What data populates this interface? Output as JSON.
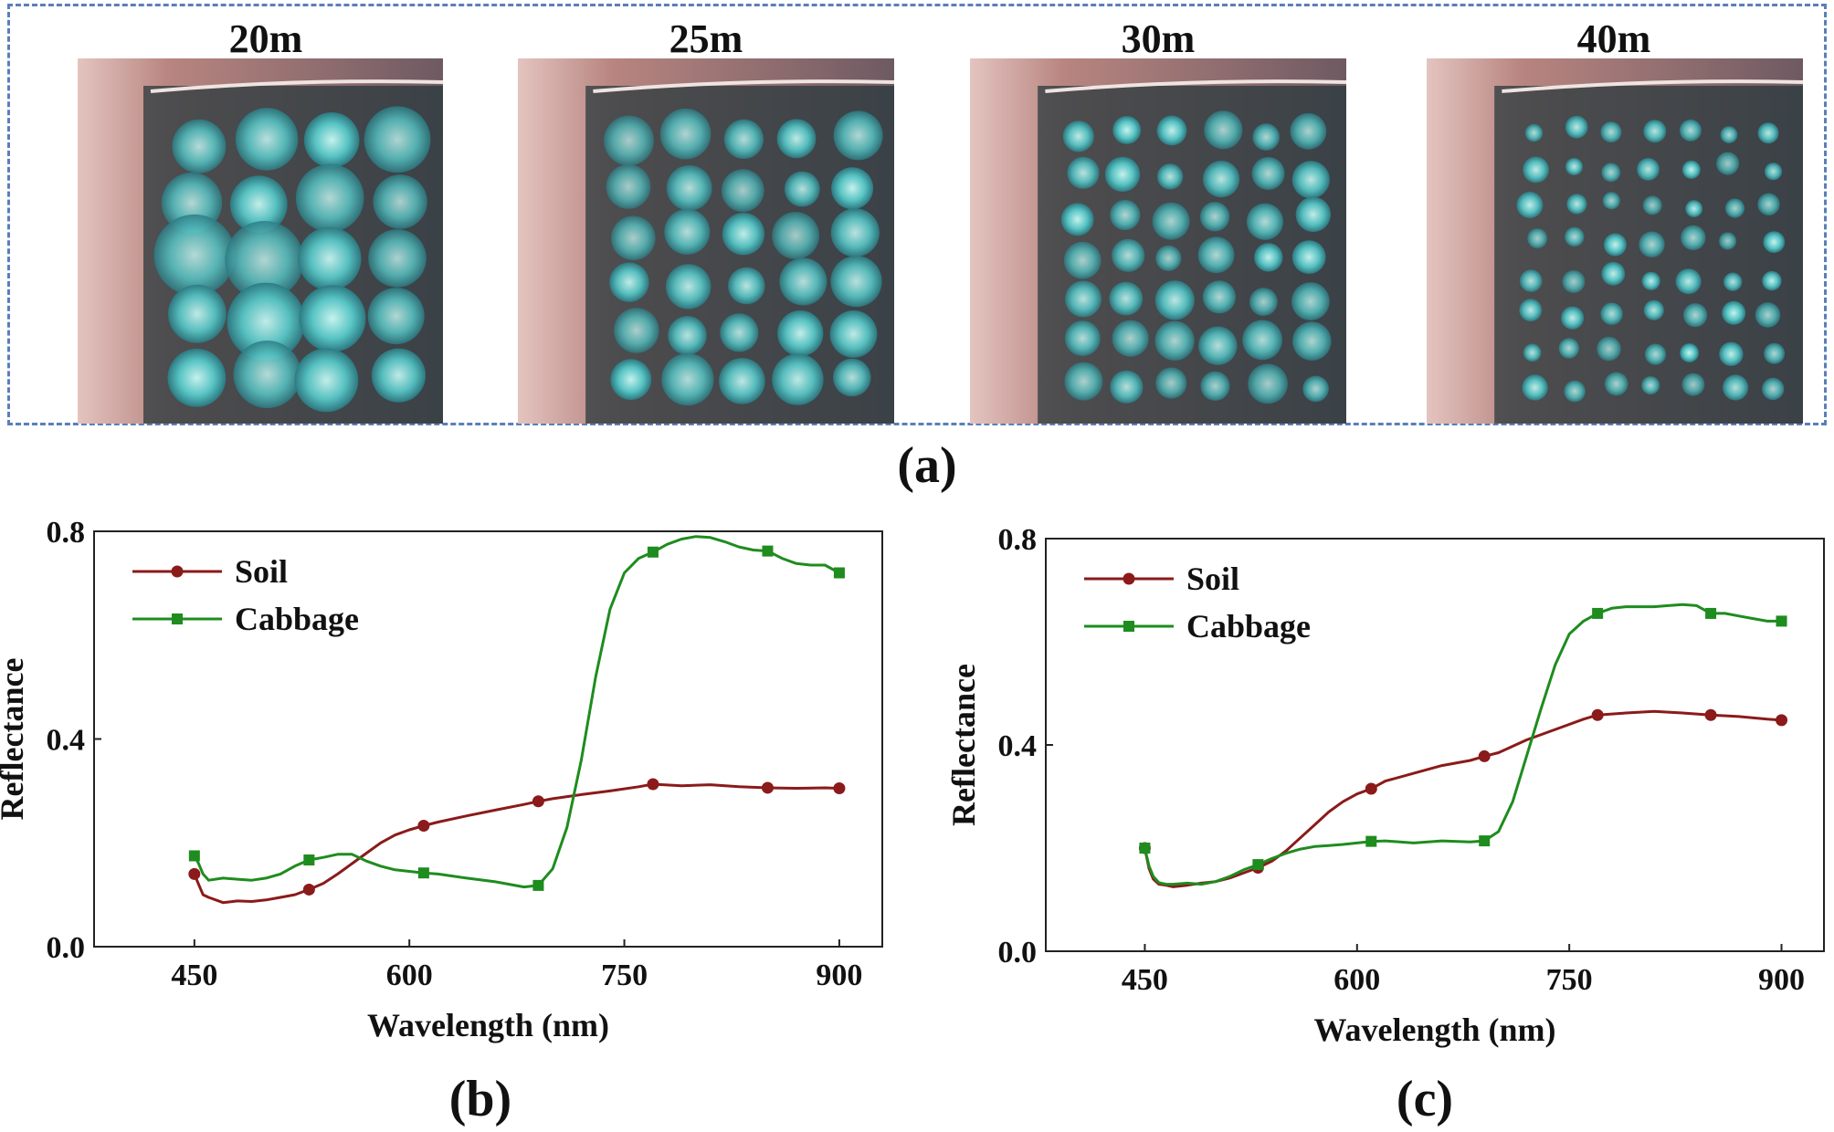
{
  "image_panel": {
    "label": "(a)",
    "tiles": [
      {
        "altitude": "20m",
        "plant_scale": 1.35,
        "density": 4
      },
      {
        "altitude": "25m",
        "plant_scale": 1.15,
        "density": 5
      },
      {
        "altitude": "30m",
        "plant_scale": 1.0,
        "density": 6
      },
      {
        "altitude": "40m",
        "plant_scale": 0.78,
        "density": 7
      }
    ]
  },
  "colors": {
    "soil": "#8b1a1a",
    "cabbage": "#1e8c1e",
    "border": "#5b7fb8"
  },
  "chart_data": [
    {
      "type": "line",
      "panel_label": "(b)",
      "xlabel": "Wavelength (nm)",
      "ylabel": "Reflectance",
      "xlim": [
        380,
        930
      ],
      "ylim": [
        0.0,
        0.8
      ],
      "xticks": [
        450,
        600,
        750,
        900
      ],
      "yticks": [
        0.0,
        0.4,
        0.8
      ],
      "ytick_labels": [
        "0.0",
        "0.4",
        "0.8"
      ],
      "legend_position": "top-left",
      "series": [
        {
          "name": "Soil",
          "marker": "circle",
          "x": [
            450,
            453,
            456,
            460,
            470,
            480,
            490,
            500,
            510,
            520,
            530,
            540,
            550,
            560,
            570,
            580,
            590,
            600,
            610,
            620,
            640,
            660,
            680,
            690,
            700,
            720,
            740,
            760,
            770,
            790,
            810,
            830,
            850,
            870,
            890,
            900
          ],
          "y": [
            0.14,
            0.12,
            0.1,
            0.095,
            0.085,
            0.088,
            0.087,
            0.09,
            0.095,
            0.1,
            0.11,
            0.122,
            0.14,
            0.16,
            0.18,
            0.2,
            0.215,
            0.225,
            0.233,
            0.24,
            0.252,
            0.263,
            0.274,
            0.28,
            0.285,
            0.293,
            0.3,
            0.308,
            0.313,
            0.31,
            0.312,
            0.308,
            0.306,
            0.305,
            0.306,
            0.305
          ],
          "marker_x": [
            450,
            530,
            610,
            690,
            770,
            850,
            900
          ],
          "marker_y": [
            0.14,
            0.11,
            0.233,
            0.28,
            0.313,
            0.306,
            0.305
          ]
        },
        {
          "name": "Cabbage",
          "marker": "square",
          "x": [
            450,
            453,
            456,
            460,
            470,
            480,
            490,
            500,
            510,
            520,
            530,
            540,
            550,
            560,
            570,
            580,
            590,
            600,
            610,
            620,
            640,
            660,
            680,
            690,
            700,
            710,
            720,
            730,
            740,
            750,
            760,
            770,
            780,
            790,
            800,
            810,
            820,
            830,
            840,
            850,
            860,
            870,
            880,
            890,
            900
          ],
          "y": [
            0.175,
            0.16,
            0.14,
            0.128,
            0.132,
            0.13,
            0.128,
            0.132,
            0.14,
            0.155,
            0.167,
            0.172,
            0.178,
            0.178,
            0.165,
            0.155,
            0.148,
            0.145,
            0.142,
            0.14,
            0.132,
            0.125,
            0.115,
            0.118,
            0.15,
            0.23,
            0.36,
            0.52,
            0.65,
            0.72,
            0.748,
            0.76,
            0.775,
            0.785,
            0.79,
            0.788,
            0.78,
            0.77,
            0.764,
            0.762,
            0.748,
            0.738,
            0.735,
            0.735,
            0.72
          ],
          "marker_x": [
            450,
            530,
            610,
            690,
            770,
            850,
            900
          ],
          "marker_y": [
            0.175,
            0.167,
            0.142,
            0.118,
            0.76,
            0.762,
            0.72
          ]
        }
      ]
    },
    {
      "type": "line",
      "panel_label": "(c)",
      "xlabel": "Wavelength (nm)",
      "ylabel": "Reflectance",
      "xlim": [
        380,
        930
      ],
      "ylim": [
        0.0,
        0.8
      ],
      "xticks": [
        450,
        600,
        750,
        900
      ],
      "yticks": [
        0.0,
        0.4,
        0.8
      ],
      "ytick_labels": [
        "0.0",
        "0.4",
        "0.8"
      ],
      "legend_position": "top-left",
      "series": [
        {
          "name": "Soil",
          "marker": "circle",
          "x": [
            450,
            453,
            456,
            460,
            465,
            470,
            480,
            490,
            500,
            510,
            520,
            530,
            540,
            550,
            560,
            570,
            580,
            590,
            600,
            610,
            620,
            640,
            660,
            680,
            690,
            700,
            720,
            740,
            760,
            770,
            790,
            810,
            830,
            850,
            870,
            890,
            900
          ],
          "y": [
            0.2,
            0.16,
            0.14,
            0.13,
            0.128,
            0.125,
            0.128,
            0.132,
            0.135,
            0.142,
            0.152,
            0.162,
            0.175,
            0.195,
            0.22,
            0.245,
            0.27,
            0.29,
            0.305,
            0.315,
            0.33,
            0.345,
            0.36,
            0.37,
            0.378,
            0.385,
            0.41,
            0.43,
            0.45,
            0.458,
            0.462,
            0.465,
            0.462,
            0.458,
            0.455,
            0.45,
            0.448
          ],
          "marker_x": [
            450,
            530,
            610,
            690,
            770,
            850,
            900
          ],
          "marker_y": [
            0.2,
            0.162,
            0.315,
            0.378,
            0.458,
            0.458,
            0.448
          ]
        },
        {
          "name": "Cabbage",
          "marker": "square",
          "x": [
            450,
            453,
            456,
            460,
            465,
            470,
            480,
            490,
            500,
            510,
            520,
            530,
            540,
            550,
            560,
            570,
            580,
            590,
            600,
            610,
            620,
            640,
            660,
            680,
            690,
            700,
            710,
            720,
            730,
            740,
            750,
            760,
            770,
            780,
            790,
            800,
            810,
            820,
            830,
            840,
            850,
            860,
            870,
            880,
            890,
            900
          ],
          "y": [
            0.2,
            0.165,
            0.145,
            0.133,
            0.13,
            0.13,
            0.132,
            0.13,
            0.135,
            0.145,
            0.158,
            0.168,
            0.18,
            0.19,
            0.198,
            0.203,
            0.205,
            0.207,
            0.21,
            0.213,
            0.214,
            0.21,
            0.214,
            0.212,
            0.214,
            0.232,
            0.29,
            0.38,
            0.47,
            0.555,
            0.615,
            0.64,
            0.655,
            0.665,
            0.668,
            0.668,
            0.668,
            0.67,
            0.672,
            0.67,
            0.655,
            0.655,
            0.65,
            0.645,
            0.64,
            0.64
          ],
          "marker_x": [
            450,
            530,
            610,
            690,
            770,
            850,
            900
          ],
          "marker_y": [
            0.2,
            0.168,
            0.213,
            0.214,
            0.655,
            0.655,
            0.64
          ]
        }
      ]
    }
  ]
}
